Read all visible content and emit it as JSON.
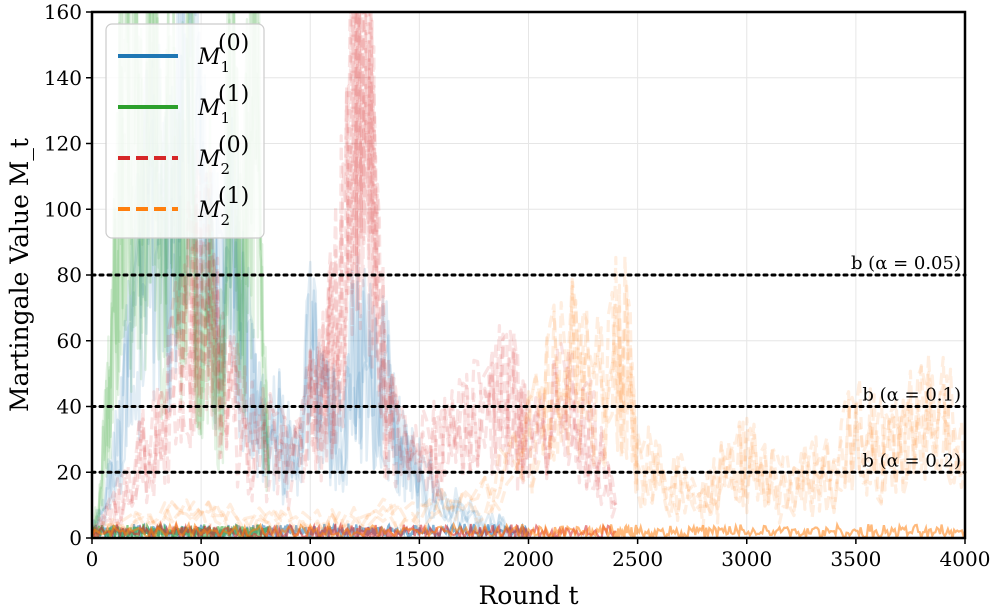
{
  "chart_data": {
    "type": "line",
    "xlabel": "Round t",
    "ylabel": "Martingale Value M_t",
    "xlim": [
      0,
      4000
    ],
    "ylim": [
      0,
      160
    ],
    "xticks": [
      0,
      500,
      1000,
      1500,
      2000,
      2500,
      3000,
      3500,
      4000
    ],
    "yticks": [
      0,
      20,
      40,
      60,
      80,
      100,
      120,
      140,
      160
    ],
    "grid": true,
    "legend_position": "top-left",
    "series": [
      {
        "name": "M_1^(0)",
        "label_main": "M",
        "label_sub": "1",
        "label_sup": "(0)",
        "color": "#1f77b4",
        "style": "solid",
        "x": [
          0,
          50,
          100,
          150,
          200,
          250,
          300,
          350,
          400,
          450,
          500,
          550,
          600,
          650,
          700,
          750,
          800,
          850,
          900,
          950,
          1000,
          1050,
          1100,
          1150,
          1200,
          1250,
          1300,
          1350,
          1400,
          1450,
          1500,
          1600,
          1700,
          1800,
          1900,
          2000
        ],
        "y": [
          1,
          8,
          22,
          45,
          70,
          95,
          110,
          85,
          120,
          160,
          110,
          85,
          70,
          95,
          60,
          40,
          28,
          35,
          30,
          22,
          60,
          45,
          35,
          30,
          62,
          55,
          50,
          48,
          30,
          25,
          20,
          12,
          8,
          5,
          3,
          1
        ]
      },
      {
        "name": "M_1^(1)",
        "label_main": "M",
        "label_sub": "1",
        "label_sup": "(1)",
        "color": "#2ca02c",
        "style": "solid",
        "x": [
          0,
          30,
          60,
          90,
          120,
          150,
          180,
          210,
          240,
          270,
          300,
          330,
          360,
          390,
          420,
          450,
          480,
          510,
          540,
          570,
          600,
          630,
          660,
          690,
          720,
          750,
          780,
          810
        ],
        "y": [
          1,
          10,
          30,
          55,
          100,
          160,
          110,
          130,
          90,
          160,
          120,
          80,
          150,
          95,
          110,
          160,
          70,
          60,
          90,
          45,
          55,
          160,
          100,
          80,
          120,
          160,
          60,
          20
        ]
      },
      {
        "name": "M_2^(0)",
        "label_main": "M",
        "label_sub": "2",
        "label_sup": "(0)",
        "color": "#d62728",
        "style": "dashed",
        "x": [
          0,
          100,
          200,
          300,
          400,
          450,
          500,
          550,
          600,
          700,
          800,
          900,
          1000,
          1050,
          1100,
          1150,
          1200,
          1225,
          1250,
          1275,
          1300,
          1350,
          1400,
          1500,
          1600,
          1700,
          1800,
          1900,
          1950,
          2000,
          2100,
          2200,
          2300,
          2400
        ],
        "y": [
          1,
          10,
          25,
          35,
          55,
          70,
          88,
          75,
          50,
          35,
          30,
          25,
          40,
          45,
          60,
          90,
          140,
          160,
          150,
          130,
          90,
          40,
          30,
          25,
          28,
          35,
          40,
          45,
          38,
          30,
          45,
          40,
          30,
          10
        ]
      },
      {
        "name": "M_2^(1)",
        "label_main": "M",
        "label_sub": "2",
        "label_sup": "(1)",
        "color": "#ff7f0e",
        "style": "dashed",
        "x": [
          0,
          200,
          400,
          600,
          800,
          1000,
          1200,
          1400,
          1600,
          1800,
          2000,
          2100,
          2200,
          2300,
          2400,
          2450,
          2500,
          2600,
          2700,
          2800,
          2900,
          3000,
          3100,
          3200,
          3300,
          3400,
          3500,
          3600,
          3700,
          3800,
          3900,
          4000
        ],
        "y": [
          1,
          5,
          8,
          6,
          5,
          4,
          5,
          8,
          10,
          12,
          30,
          45,
          55,
          45,
          60,
          55,
          25,
          20,
          15,
          12,
          20,
          25,
          18,
          15,
          20,
          18,
          35,
          28,
          30,
          40,
          45,
          20
        ]
      }
    ],
    "hlines": [
      {
        "y": 80,
        "label": "b (α = 0.05)",
        "style": "dotted",
        "color": "#000000"
      },
      {
        "y": 40,
        "label": "b (α = 0.1)",
        "style": "dotted",
        "color": "#000000"
      },
      {
        "y": 20,
        "label": "b (α = 0.2)",
        "style": "dotted",
        "color": "#000000"
      }
    ]
  }
}
